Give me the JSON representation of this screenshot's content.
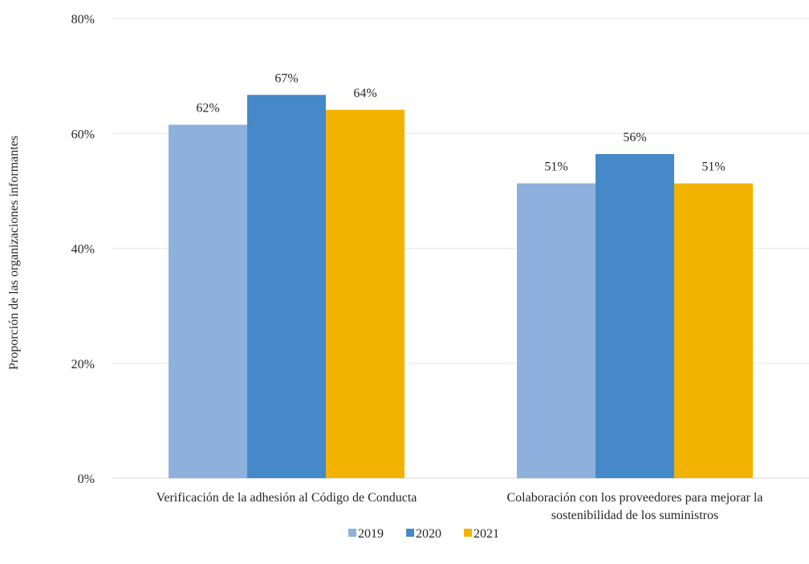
{
  "chart_data": {
    "type": "bar",
    "title": "",
    "xlabel": "",
    "ylabel": "Proporción de las organizaciones informantes",
    "ylim": [
      0,
      0.8
    ],
    "yticks": [
      0,
      0.2,
      0.4,
      0.6,
      0.8
    ],
    "ytick_labels": [
      "0%",
      "20%",
      "40%",
      "60%",
      "80%"
    ],
    "grid": true,
    "legend_position": "bottom",
    "categories": [
      [
        "Verificación de la adhesión al Código de Conducta"
      ],
      [
        "Colaboración con los proveedores para mejorar la",
        "sostenibilidad de los suministros"
      ]
    ],
    "series": [
      {
        "name": "2019",
        "color": "#8eb0dd",
        "values": [
          0.615,
          0.513
        ],
        "labels": [
          "62%",
          "51%"
        ]
      },
      {
        "name": "2020",
        "color": "#4689c8",
        "values": [
          0.667,
          0.564
        ],
        "labels": [
          "67%",
          "56%"
        ]
      },
      {
        "name": "2021",
        "color": "#f2b300",
        "values": [
          0.641,
          0.513
        ],
        "labels": [
          "64%",
          "51%"
        ]
      }
    ]
  }
}
